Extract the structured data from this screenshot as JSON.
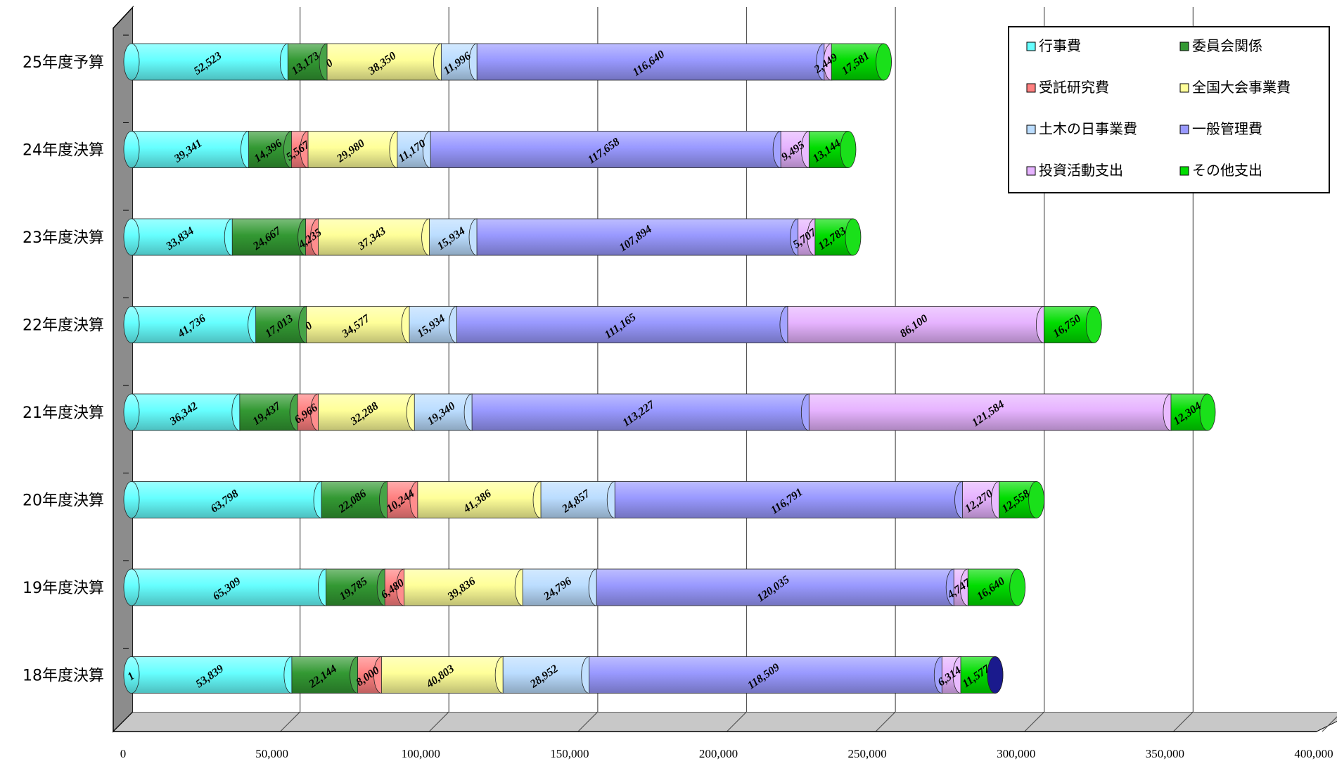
{
  "chart_data": {
    "type": "bar",
    "orientation": "horizontal",
    "stacked": true,
    "style": "3d-cylinder",
    "title": "",
    "xlabel": "",
    "ylabel": "",
    "xlim": [
      0,
      400000
    ],
    "x_ticks": [
      "0",
      "50,000",
      "100,000",
      "150,000",
      "200,000",
      "250,000",
      "300,000",
      "350,000",
      "400,000"
    ],
    "x_tick_values": [
      0,
      50000,
      100000,
      150000,
      200000,
      250000,
      300000,
      350000,
      400000
    ],
    "grid": "vertical",
    "legend_position": "top-right",
    "categories": [
      "25年度予算",
      "24年度決算",
      "23年度決算",
      "22年度決算",
      "21年度決算",
      "20年度決算",
      "19年度決算",
      "18年度決算"
    ],
    "series": [
      {
        "name": "行事費",
        "color": "#66ffff",
        "values": [
          52523,
          39341,
          33834,
          41736,
          36342,
          63798,
          65309,
          53839
        ],
        "labels": [
          "52,523",
          "39,341",
          "33,834",
          "41,736",
          "36,342",
          "63,798",
          "65,309",
          "53,839"
        ]
      },
      {
        "name": "委員会関係",
        "color": "#339933",
        "values": [
          13173,
          14396,
          24667,
          17013,
          19437,
          22086,
          19785,
          22144
        ],
        "labels": [
          "13,173",
          "14,396",
          "24,667",
          "17,013",
          "19,437",
          "22,086",
          "19,785",
          "22,144"
        ]
      },
      {
        "name": "受託研究費",
        "color": "#ff8080",
        "values": [
          0,
          5567,
          4235,
          0,
          6966,
          10244,
          6480,
          8000
        ],
        "labels": [
          "0",
          "5,567",
          "4,235",
          "0",
          "6,966",
          "10,244",
          "6,480",
          "8,000"
        ]
      },
      {
        "name": "全国大会事業費",
        "color": "#ffff99",
        "values": [
          38350,
          29980,
          37343,
          34577,
          32288,
          41386,
          39836,
          40803
        ],
        "labels": [
          "38,350",
          "29,980",
          "37,343",
          "34,577",
          "32,288",
          "41,386",
          "39,836",
          "40,803"
        ]
      },
      {
        "name": "土木の日事業費",
        "color": "#bbddff",
        "values": [
          11996,
          11170,
          15934,
          15934,
          19340,
          24857,
          24796,
          28952
        ],
        "labels": [
          "11,996",
          "11,170",
          "15,934",
          "15,934",
          "19,340",
          "24,857",
          "24,796",
          "28,952"
        ]
      },
      {
        "name": "一般管理費",
        "color": "#9999ff",
        "values": [
          116640,
          117658,
          107894,
          111165,
          113227,
          116791,
          120035,
          118509
        ],
        "labels": [
          "116,640",
          "117,658",
          "107,894",
          "111,165",
          "113,227",
          "116,791",
          "120,035",
          "118,509"
        ]
      },
      {
        "name": "投資活動支出",
        "color": "#e6b3ff",
        "values": [
          2449,
          9495,
          5707,
          86100,
          121584,
          12270,
          4747,
          6314
        ],
        "labels": [
          "2,449",
          "9,495",
          "5,707",
          "86,100",
          "121,584",
          "12,270",
          "4,747",
          "6,314"
        ]
      },
      {
        "name": "その他支出",
        "color": "#00dd00",
        "values": [
          17581,
          13144,
          12783,
          16750,
          12304,
          12558,
          16640,
          11577
        ],
        "labels": [
          "17,581",
          "13,144",
          "12,783",
          "16,750",
          "12,304",
          "12,558",
          "16,640",
          "11,577"
        ]
      },
      {
        "name": "",
        "color": "#000080",
        "values": [
          0,
          0,
          0,
          0,
          0,
          0,
          0,
          1
        ],
        "labels": [
          "",
          "",
          "",
          "",
          "",
          "",
          "",
          "1"
        ],
        "in_legend": false
      }
    ]
  }
}
